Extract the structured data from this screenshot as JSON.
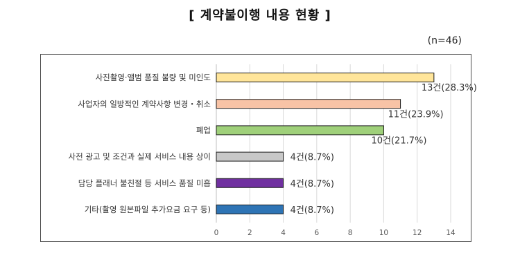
{
  "title": "[ 계약불이행 내용 현황 ]",
  "sample_note": "(n=46)",
  "chart_data": {
    "type": "bar",
    "orientation": "horizontal",
    "title": "[ 계약불이행 내용 현황 ]",
    "categories": [
      "사진촬영·앨범 품질 불량 및 미인도",
      "사업자의 일방적인 계약사항 변경・취소",
      "폐업",
      "사전 광고 및 조건과 실제 서비스 내용 상이",
      "담당 플래너 불친절 등 서비스 품질 미흡",
      "기타(촬영 원본파일 추가요금 요구 등)"
    ],
    "values": [
      13,
      11,
      10,
      4,
      4,
      4
    ],
    "data_labels": [
      "13건(28.3%)",
      "11건(23.9%)",
      "10건(21.7%)",
      "4건(8.7%)",
      "4건(8.7%)",
      "4건(8.7%)"
    ],
    "colors": [
      "#ffe59a",
      "#f8c3a6",
      "#9fd07a",
      "#c8c8c8",
      "#7030a0",
      "#2e74b5"
    ],
    "xlim": [
      0,
      14
    ],
    "ticks": [
      0,
      2,
      4,
      6,
      8,
      10,
      12,
      14
    ],
    "grid": true
  }
}
